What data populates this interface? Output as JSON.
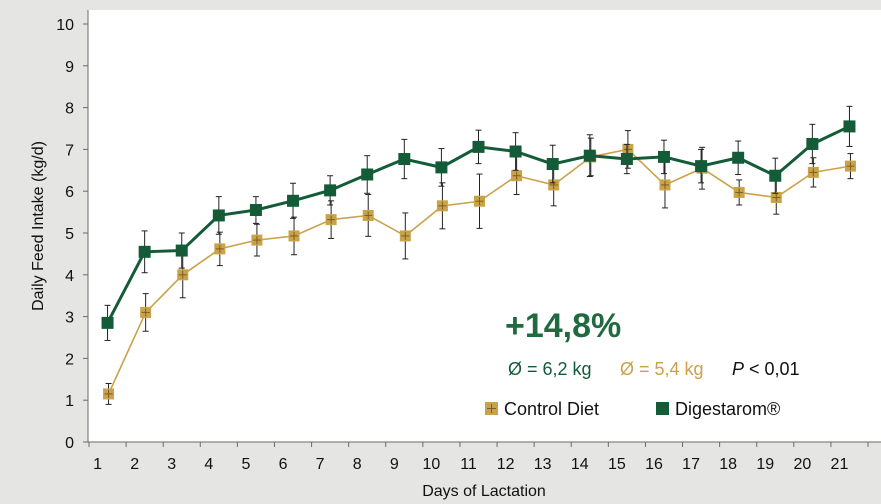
{
  "chart_data": {
    "type": "line",
    "xlabel": "Days of Lactation",
    "ylabel": "Daily Feed Intake (kg/d)",
    "ylim": [
      0,
      10
    ],
    "yticks": [
      0,
      1,
      2,
      3,
      4,
      5,
      6,
      7,
      8,
      9,
      10
    ],
    "categories": [
      "1",
      "2",
      "3",
      "4",
      "5",
      "6",
      "7",
      "8",
      "9",
      "10",
      "11",
      "12",
      "13",
      "14",
      "15",
      "16",
      "17",
      "18",
      "19",
      "20",
      "21"
    ],
    "grid": false,
    "legend": "bottom-right",
    "series": [
      {
        "name": "Control Diet",
        "color": "#c9a24a",
        "line_color": "#c9a24a",
        "marker": "square-plus",
        "values": [
          1.15,
          3.1,
          4.0,
          4.62,
          4.83,
          4.93,
          5.32,
          5.42,
          4.93,
          5.65,
          5.76,
          6.37,
          6.15,
          6.82,
          7.0,
          6.15,
          6.55,
          5.97,
          5.85,
          6.45,
          6.6
        ],
        "errors": [
          0.25,
          0.45,
          0.55,
          0.4,
          0.38,
          0.45,
          0.45,
          0.5,
          0.55,
          0.55,
          0.65,
          0.45,
          0.5,
          0.45,
          0.45,
          0.55,
          0.5,
          0.3,
          0.4,
          0.35,
          0.3
        ]
      },
      {
        "name": "Digestarom®",
        "color": "#145c38",
        "line_color": "#145c38",
        "marker": "square",
        "values": [
          2.85,
          4.55,
          4.58,
          5.42,
          5.55,
          5.77,
          6.02,
          6.4,
          6.77,
          6.57,
          7.06,
          6.95,
          6.65,
          6.85,
          6.77,
          6.82,
          6.6,
          6.8,
          6.37,
          7.13,
          7.55
        ],
        "errors": [
          0.42,
          0.5,
          0.42,
          0.45,
          0.32,
          0.42,
          0.35,
          0.45,
          0.47,
          0.45,
          0.4,
          0.45,
          0.45,
          0.5,
          0.35,
          0.4,
          0.4,
          0.4,
          0.42,
          0.47,
          0.48
        ]
      }
    ],
    "annotations": {
      "percent": "+14,8%",
      "avg_digestarom": "Ø = 6,2 kg",
      "avg_control": "Ø = 5,4 kg",
      "p_label": "P",
      "p_value": " < 0,01",
      "percent_color": "#1f6b3f",
      "p_color": "#111111"
    }
  }
}
